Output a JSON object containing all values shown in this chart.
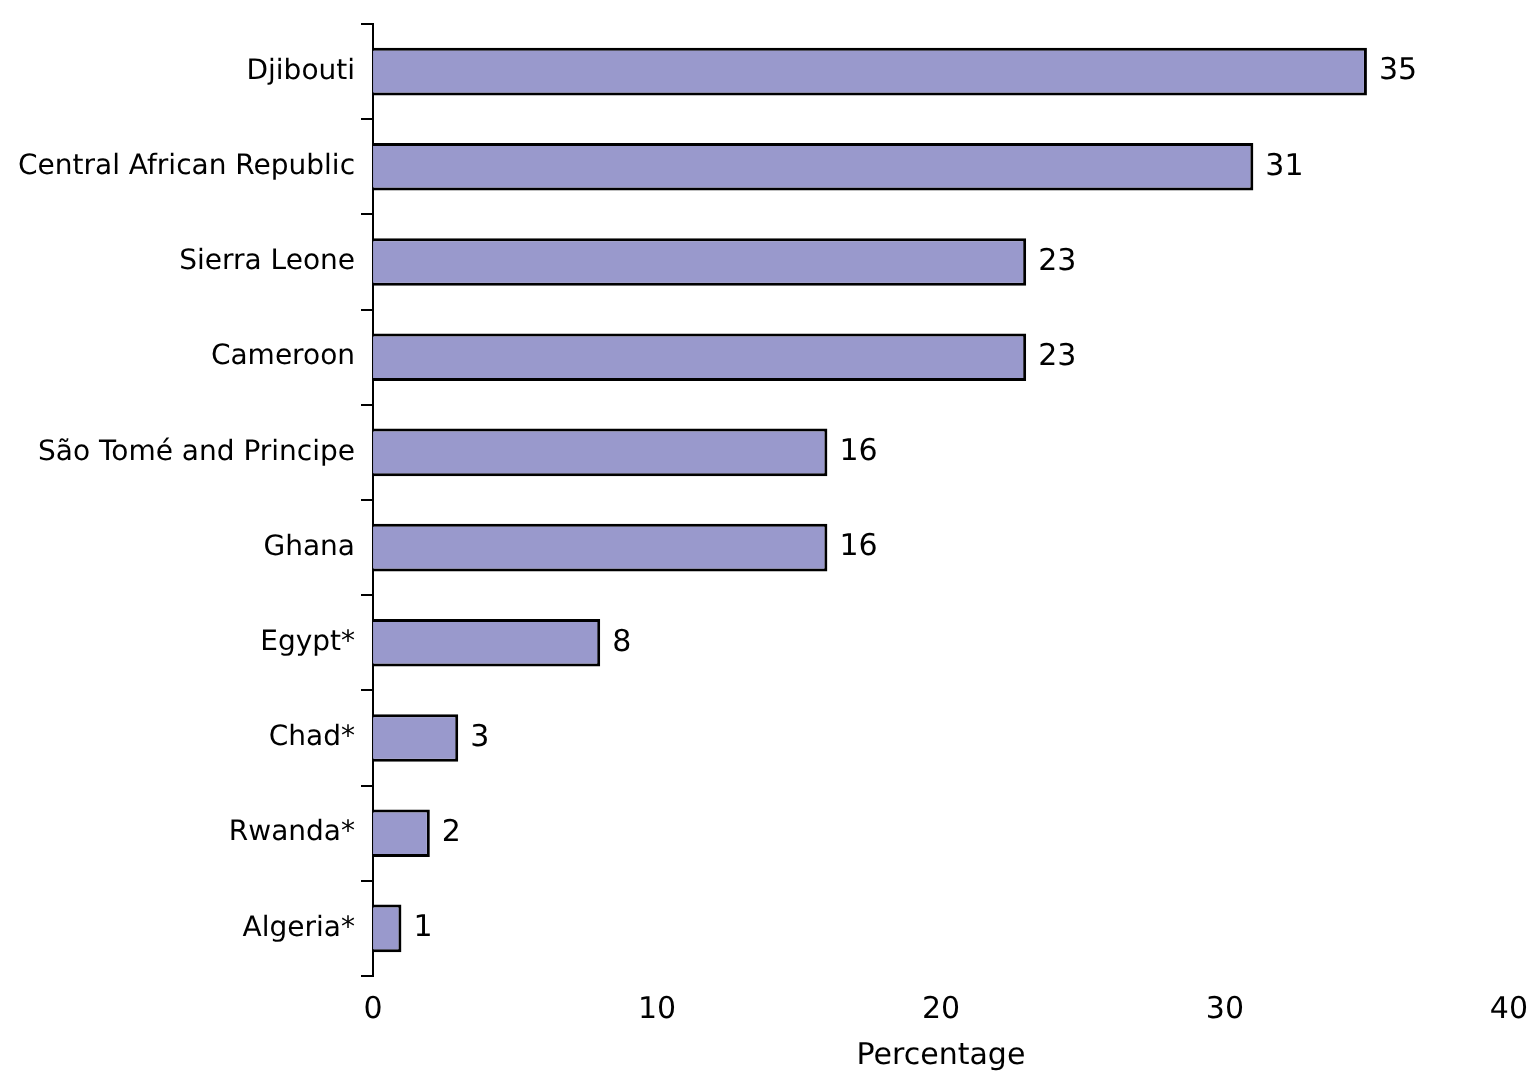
{
  "chart_data": {
    "type": "bar",
    "orientation": "horizontal",
    "xlabel": "Percentage",
    "categories": [
      "Djibouti",
      "Central African Republic",
      "Sierra Leone",
      "Cameroon",
      "São Tomé and Principe",
      "Ghana",
      "Egypt*",
      "Chad*",
      "Rwanda*",
      "Algeria*"
    ],
    "values": [
      35,
      31,
      23,
      23,
      16,
      16,
      8,
      3,
      2,
      1
    ],
    "color": "#9999cc",
    "xlim": [
      0,
      40
    ],
    "xticks": [
      0,
      10,
      20,
      30,
      40
    ],
    "grid": false,
    "legend": false,
    "data_labels": true
  }
}
